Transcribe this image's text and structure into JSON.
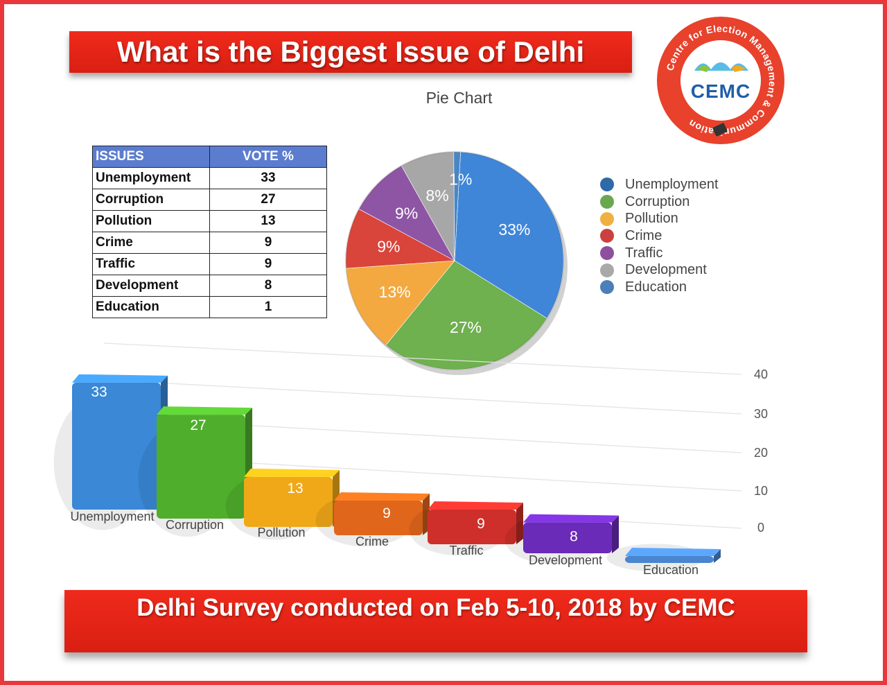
{
  "title": "What is the Biggest Issue of Delhi",
  "pie_title": "Pie Chart",
  "footer": "Delhi Survey conducted on Feb 5-10, 2018 by CEMC",
  "logo": {
    "ring_text": "Centre for Election Management & Communication",
    "letters": "CEMC"
  },
  "table": {
    "headers": [
      "ISSUES",
      "VOTE %"
    ],
    "rows": [
      [
        "Unemployment",
        "33"
      ],
      [
        "Corruption",
        "27"
      ],
      [
        "Pollution",
        "13"
      ],
      [
        "Crime",
        "9"
      ],
      [
        "Traffic",
        "9"
      ],
      [
        "Development",
        "8"
      ],
      [
        "Education",
        "1"
      ]
    ]
  },
  "colors": {
    "banner": "#e2261a",
    "frame": "#e8383c",
    "table_header": "#5c7dcf"
  },
  "chart_data": [
    {
      "type": "pie",
      "title": "Pie Chart",
      "categories": [
        "Unemployment",
        "Corruption",
        "Pollution",
        "Crime",
        "Traffic",
        "Development",
        "Education"
      ],
      "values": [
        33,
        27,
        13,
        9,
        9,
        8,
        1
      ],
      "labels": [
        "33%",
        "27%",
        "13%",
        "9%",
        "9%",
        "8%",
        "1%"
      ],
      "colors": [
        "#3f86d8",
        "#6fb04f",
        "#f3a940",
        "#d9443b",
        "#8e55a5",
        "#a7a7a7",
        "#4a86c2"
      ],
      "legend": {
        "position": "right",
        "entries": [
          "Unemployment",
          "Corruption",
          "Pollution",
          "Crime",
          "Traffic",
          "Development",
          "Education"
        ],
        "colors": [
          "#2e6aa8",
          "#6aa84f",
          "#f1b042",
          "#cc4040",
          "#8e4f9e",
          "#a9a9a9",
          "#4a7fb8"
        ]
      }
    },
    {
      "type": "bar",
      "categories": [
        "Unemployment",
        "Corruption",
        "Pollution",
        "Crime",
        "Traffic",
        "Development",
        "Education"
      ],
      "values": [
        33,
        27,
        13,
        9,
        9,
        8,
        1
      ],
      "data_labels": [
        "33",
        "27",
        "13",
        "9",
        "9",
        "8",
        ""
      ],
      "y_ticks": [
        "0",
        "10",
        "20",
        "30",
        "40"
      ],
      "ylim": [
        0,
        40
      ],
      "colors": [
        "#3a88d6",
        "#4fae2c",
        "#f0a818",
        "#e0661c",
        "#cf2f2a",
        "#6a2bb8",
        "#4a86cf"
      ],
      "grid": true
    }
  ]
}
